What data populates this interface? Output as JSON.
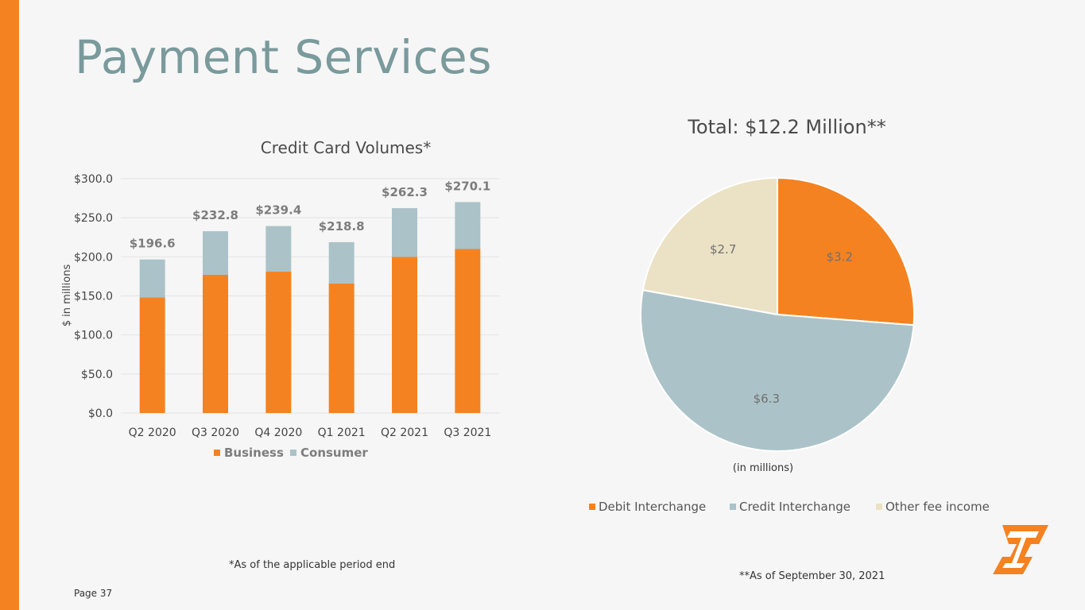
{
  "page_title": "Payment Services",
  "page_number": "Page 37",
  "colors": {
    "accent": "#f58220",
    "consumer": "#abc3c8",
    "other": "#ebe1c4",
    "title": "#7a9a9c"
  },
  "footnotes": {
    "left": "*As of the applicable period end",
    "right": "**As of September 30, 2021"
  },
  "chart_data": [
    {
      "type": "bar",
      "stacked": true,
      "title": "Credit Card Volumes*",
      "xlabel": "",
      "ylabel": "$ in millions",
      "ylim": [
        0,
        300
      ],
      "yticks": [
        0,
        50,
        100,
        150,
        200,
        250,
        300
      ],
      "ytick_labels": [
        "$0.0",
        "$50.0",
        "$100.0",
        "$150.0",
        "$200.0",
        "$250.0",
        "$300.0"
      ],
      "categories": [
        "Q2 2020",
        "Q3 2020",
        "Q4 2020",
        "Q1 2021",
        "Q2 2021",
        "Q3 2021"
      ],
      "series": [
        {
          "name": "Business",
          "values": [
            148,
            177,
            181,
            166,
            200,
            210
          ]
        },
        {
          "name": "Consumer",
          "values": [
            48.6,
            55.8,
            58.4,
            52.8,
            62.3,
            60.1
          ]
        }
      ],
      "totals": [
        196.6,
        232.8,
        239.4,
        218.8,
        262.3,
        270.1
      ],
      "total_labels": [
        "$196.6",
        "$232.8",
        "$239.4",
        "$218.8",
        "$262.3",
        "$270.1"
      ],
      "grid": true,
      "legend": "bottom"
    },
    {
      "type": "pie",
      "title": "Total: $12.2 Million**",
      "unit_note": "(in millions)",
      "labels": [
        "Debit Interchange",
        "Credit Interchange",
        "Other fee income"
      ],
      "values": [
        3.2,
        6.3,
        2.7
      ],
      "value_labels": [
        "$3.2",
        "$6.3",
        "$2.7"
      ],
      "legend": "bottom"
    }
  ]
}
